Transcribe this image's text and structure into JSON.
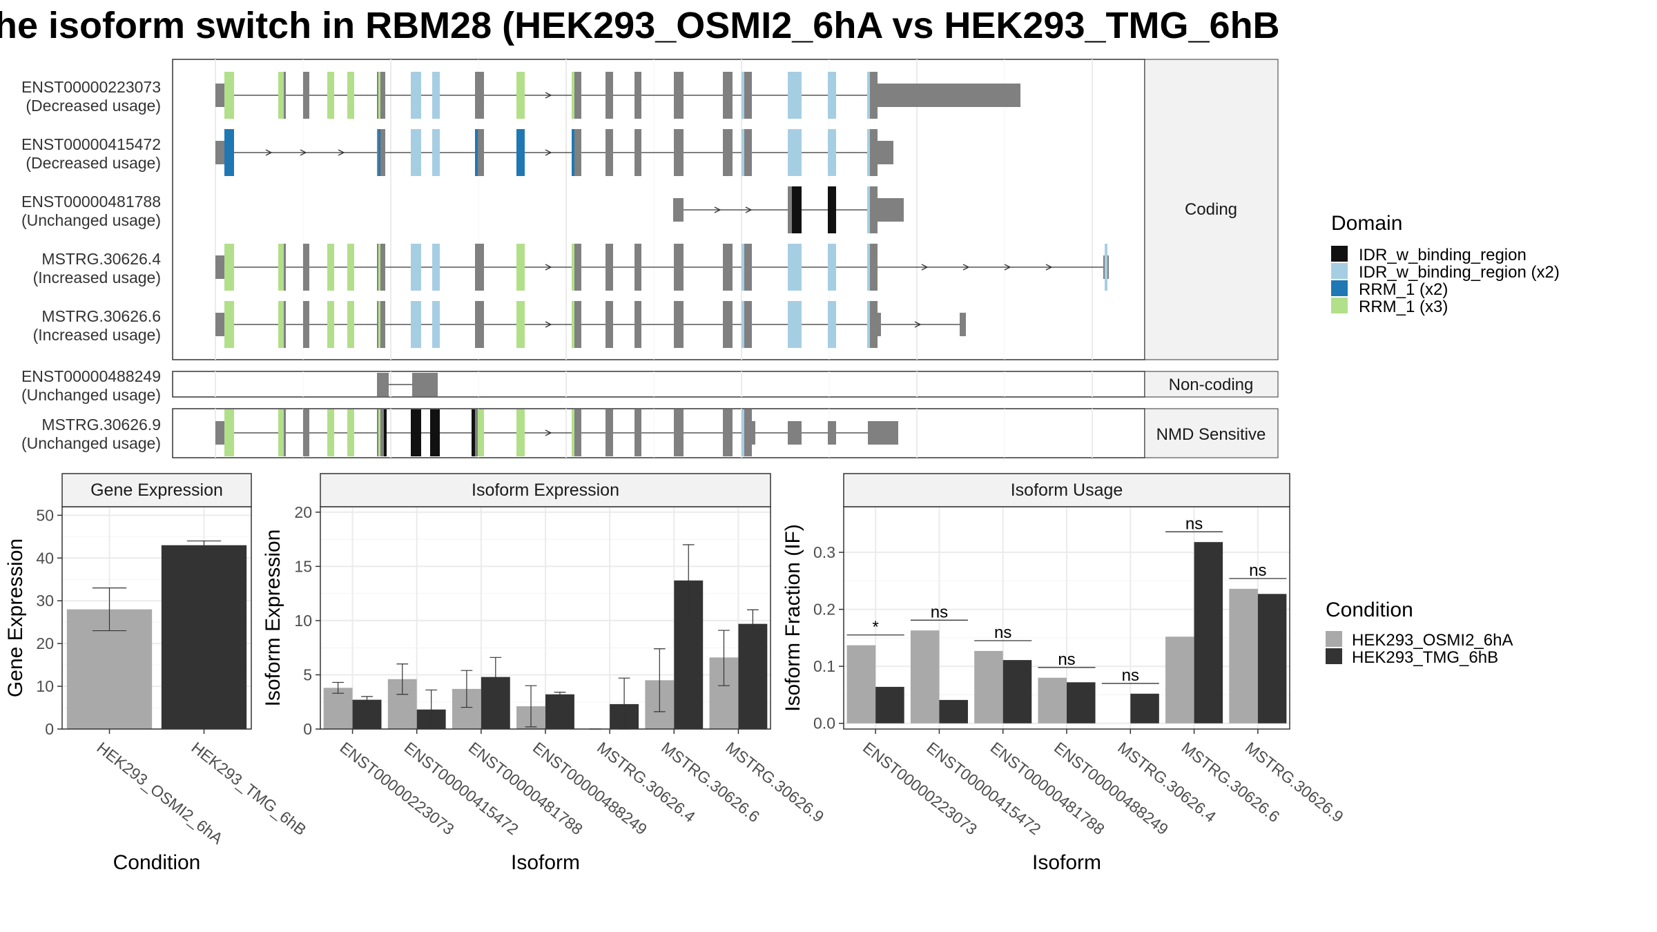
{
  "title": "he isoform switch in RBM28 (HEK293_OSMI2_6hA vs HEK293_TMG_6hB",
  "colors": {
    "IDR_w_binding_region": "#111111",
    "IDR_w_binding_region (x2)": "#a6cee3",
    "RRM_1 (x2)": "#1f78b4",
    "RRM_1 (x3)": "#b2df8a",
    "exon": "#808080",
    "HEK293_OSMI2_6hA": "#a9a9a9",
    "HEK293_TMG_6hB": "#333333"
  },
  "structure": {
    "coding_label": "Coding",
    "noncoding_label": "Non-coding",
    "nmd_label": "NMD Sensitive",
    "transcripts": [
      {
        "id": "ENST00000223073",
        "usage": "(Decreased usage)",
        "group": "coding"
      },
      {
        "id": "ENST00000415472",
        "usage": "(Decreased usage)",
        "group": "coding"
      },
      {
        "id": "ENST00000481788",
        "usage": "(Unchanged usage)",
        "group": "coding"
      },
      {
        "id": "MSTRG.30626.4",
        "usage": "(Increased usage)",
        "group": "coding"
      },
      {
        "id": "MSTRG.30626.6",
        "usage": "(Increased usage)",
        "group": "coding"
      },
      {
        "id": "ENST00000488249",
        "usage": "(Unchanged usage)",
        "group": "noncoding"
      },
      {
        "id": "MSTRG.30626.9",
        "usage": "(Unchanged usage)",
        "group": "nmd"
      }
    ]
  },
  "legend_domain": {
    "title": "Domain",
    "items": [
      "IDR_w_binding_region",
      "IDR_w_binding_region (x2)",
      "RRM_1 (x2)",
      "RRM_1 (x3)"
    ]
  },
  "legend_condition": {
    "title": "Condition",
    "items": [
      "HEK293_OSMI2_6hA",
      "HEK293_TMG_6hB"
    ]
  },
  "chart_data": [
    {
      "type": "bar",
      "title": "Gene Expression",
      "xlabel": "Condition",
      "ylabel": "Gene Expression",
      "ylim": [
        0,
        52
      ],
      "yticks": [
        0,
        10,
        20,
        30,
        40,
        50
      ],
      "categories": [
        "HEK293_OSMI2_6hA",
        "HEK293_TMG_6hB"
      ],
      "values": [
        28,
        43
      ],
      "errors": [
        [
          23,
          33
        ],
        [
          42,
          44
        ]
      ]
    },
    {
      "type": "bar",
      "title": "Isoform Expression",
      "xlabel": "Isoform",
      "ylabel": "Isoform Expression",
      "ylim": [
        0,
        20.5
      ],
      "yticks": [
        0,
        5,
        10,
        15,
        20
      ],
      "categories": [
        "ENST00000223073",
        "ENST00000415472",
        "ENST00000481788",
        "ENST00000488249",
        "MSTRG.30626.4",
        "MSTRG.30626.6",
        "MSTRG.30626.9"
      ],
      "series": [
        {
          "name": "HEK293_OSMI2_6hA",
          "values": [
            3.8,
            4.6,
            3.7,
            2.1,
            0.0,
            4.5,
            6.6
          ],
          "errors": [
            [
              3.3,
              4.3
            ],
            [
              3.2,
              6.0
            ],
            [
              2.0,
              5.4
            ],
            [
              0.2,
              4.0
            ],
            [
              0.0,
              0.0
            ],
            [
              1.6,
              7.4
            ],
            [
              4.0,
              9.1
            ]
          ]
        },
        {
          "name": "HEK293_TMG_6hB",
          "values": [
            2.7,
            1.8,
            4.8,
            3.2,
            2.3,
            13.7,
            9.7
          ],
          "errors": [
            [
              2.5,
              3.0
            ],
            [
              0.1,
              3.6
            ],
            [
              3.0,
              6.6
            ],
            [
              3.0,
              3.4
            ],
            [
              0.0,
              4.7
            ],
            [
              10.4,
              17.0
            ],
            [
              8.5,
              11.0
            ]
          ]
        }
      ]
    },
    {
      "type": "bar",
      "title": "Isoform Usage",
      "xlabel": "Isoform",
      "ylabel": "Isoform Fraction (IF)",
      "ylim": [
        -0.01,
        0.38
      ],
      "yticks": [
        0.0,
        0.1,
        0.2,
        0.3
      ],
      "ytick_labels": [
        "0.0",
        "0.1",
        "0.2",
        "0.3"
      ],
      "categories": [
        "ENST00000223073",
        "ENST00000415472",
        "ENST00000481788",
        "ENST00000488249",
        "MSTRG.30626.4",
        "MSTRG.30626.6",
        "MSTRG.30626.9"
      ],
      "series": [
        {
          "name": "HEK293_OSMI2_6hA",
          "values": [
            0.137,
            0.163,
            0.127,
            0.08,
            0.0,
            0.152,
            0.236
          ]
        },
        {
          "name": "HEK293_TMG_6hB",
          "values": [
            0.064,
            0.041,
            0.111,
            0.072,
            0.052,
            0.318,
            0.227
          ]
        }
      ],
      "significance": [
        "*",
        "ns",
        "ns",
        "ns",
        "ns",
        "ns",
        "ns"
      ],
      "significance_y": [
        0.155,
        0.181,
        0.145,
        0.098,
        0.07,
        0.336,
        0.254
      ]
    }
  ]
}
